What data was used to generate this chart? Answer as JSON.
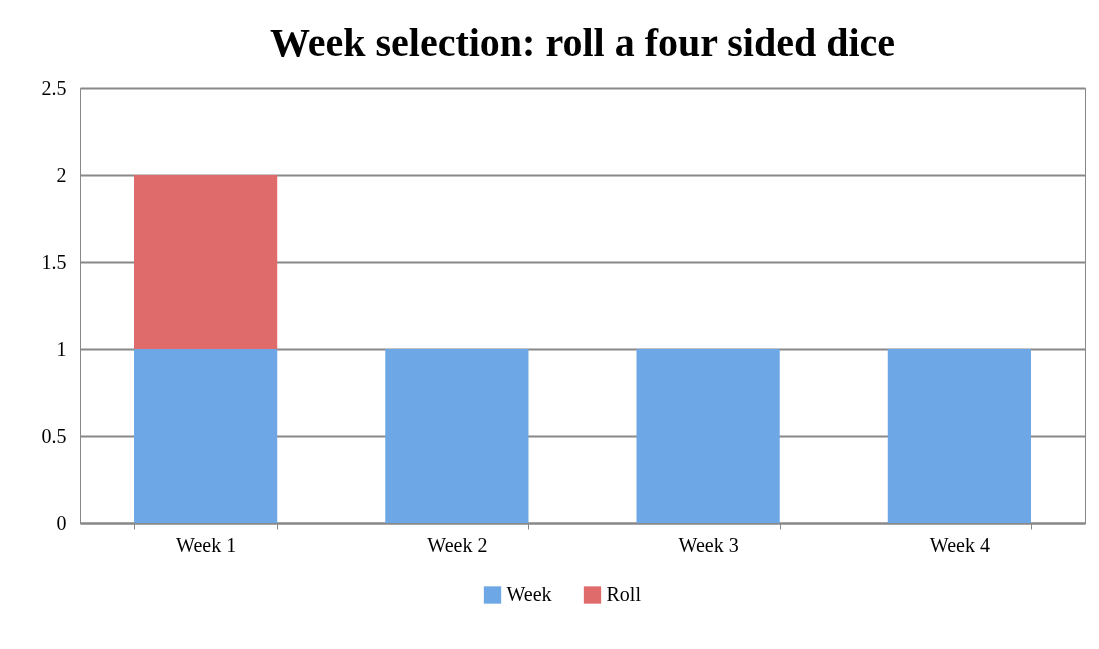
{
  "chart_data": {
    "type": "bar",
    "title": "Week selection: roll a four sided dice",
    "stacked": true,
    "categories": [
      "Week 1",
      "Week 2",
      "Week 3",
      "Week 4"
    ],
    "series": [
      {
        "name": "Week",
        "color": "#6ea7e6",
        "values": [
          1,
          1,
          1,
          1
        ]
      },
      {
        "name": "Roll",
        "color": "#e06b6b",
        "values": [
          1,
          null,
          null,
          null
        ]
      }
    ],
    "ylim": [
      0,
      2.5
    ],
    "yticks": [
      0,
      0.5,
      1,
      1.5,
      2,
      2.5
    ],
    "grid": "y",
    "legend": "bottom"
  }
}
